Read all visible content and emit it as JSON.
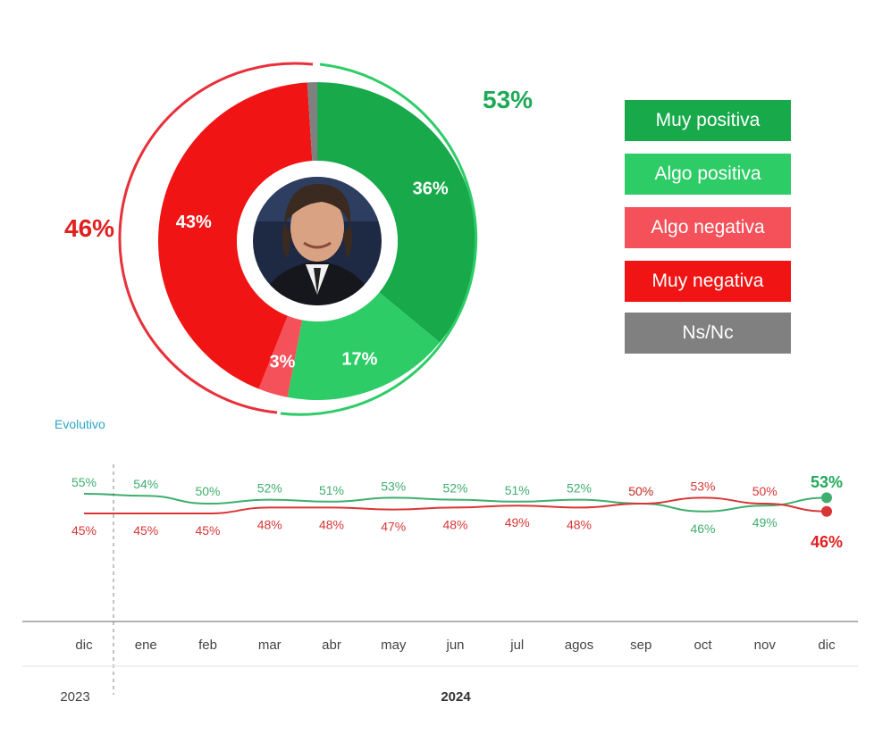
{
  "colors": {
    "muy_positiva": "#17a94a",
    "algo_positiva": "#2ecc67",
    "algo_negativa": "#f5515a",
    "muy_negativa": "#f01414",
    "ns_nc": "#808080",
    "positive_line": "#3fae6e",
    "negative_line": "#d83636",
    "evolutivo": "#2aa6c4"
  },
  "donut": {
    "totals": {
      "positive": "53%",
      "negative": "46%"
    }
  },
  "legend": [
    {
      "label": "Muy positiva",
      "color": "#17a94a"
    },
    {
      "label": "Algo positiva",
      "color": "#2ecc67"
    },
    {
      "label": "Algo negativa",
      "color": "#f5515a"
    },
    {
      "label": "Muy negativa",
      "color": "#f01414"
    },
    {
      "label": "Ns/Nc",
      "color": "#808080"
    }
  ],
  "evolutivo_label": "Evolutivo",
  "chart_data": [
    {
      "type": "pie",
      "categories": [
        "Muy positiva",
        "Algo positiva",
        "Algo negativa",
        "Muy negativa",
        "Ns/Nc"
      ],
      "values": [
        36,
        17,
        3,
        43,
        1
      ],
      "data_labels": [
        "36%",
        "17%",
        "3%",
        "43%",
        ""
      ]
    },
    {
      "type": "line",
      "categories": [
        "dic",
        "ene",
        "feb",
        "mar",
        "abr",
        "may",
        "jun",
        "jul",
        "agos",
        "sep",
        "oct",
        "nov",
        "dic"
      ],
      "year_labels": [
        "2023",
        "2024"
      ],
      "series": [
        {
          "values": [
            55,
            54,
            50,
            52,
            51,
            53,
            52,
            51,
            52,
            50,
            46,
            49,
            53
          ]
        },
        {
          "values": [
            45,
            45,
            45,
            48,
            48,
            47,
            48,
            49,
            48,
            50,
            53,
            50,
            46
          ]
        }
      ],
      "display_values": [
        [
          "55%",
          "54%",
          "50%",
          "52%",
          "51%",
          "53%",
          "52%",
          "51%",
          "52%",
          "50%",
          "46%",
          "49%",
          "53%"
        ],
        [
          "45%",
          "45%",
          "45%",
          "48%",
          "48%",
          "47%",
          "48%",
          "49%",
          "48%",
          "50%",
          "53%",
          "50%",
          "46%"
        ]
      ]
    }
  ]
}
